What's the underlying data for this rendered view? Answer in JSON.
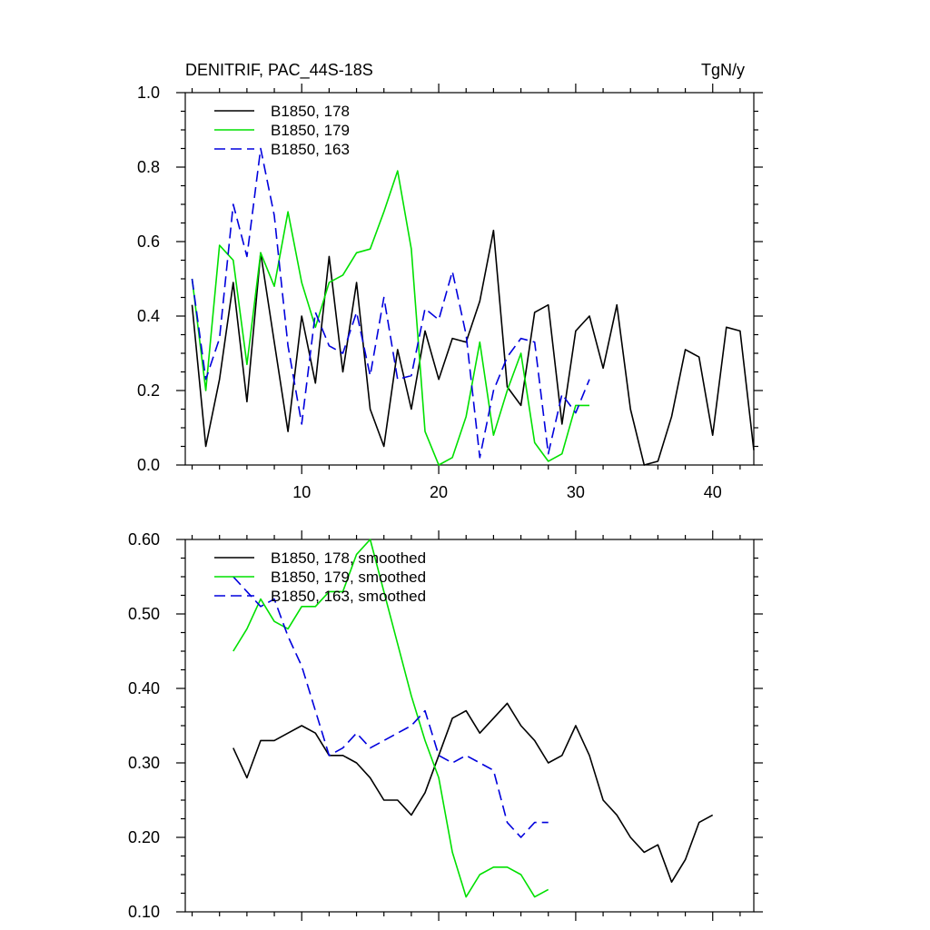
{
  "figure": {
    "title_left": "DENITRIF, PAC_44S-18S",
    "title_right": "TgN/y"
  },
  "colors": {
    "run178": "#000000",
    "run179": "#00e000",
    "run163": "#0000dd"
  },
  "chart_data": [
    {
      "type": "line",
      "title": "DENITRIF, PAC_44S-18S",
      "units": "TgN/y",
      "xlim": [
        1.5,
        43
      ],
      "ylim": [
        0,
        1
      ],
      "xticks": [
        10,
        20,
        30,
        40
      ],
      "xtick_labels": [
        "10",
        "20",
        "30",
        "40"
      ],
      "yticks": [
        0,
        0.2,
        0.4,
        0.6,
        0.8,
        1
      ],
      "ytick_labels": [
        "0.0",
        "0.2",
        "0.4",
        "0.6",
        "0.8",
        "1.0"
      ],
      "legend_position": "top-left",
      "series": [
        {
          "name": "B1850, 178",
          "color": "#000000",
          "dash": "solid",
          "x": [
            2,
            3,
            4,
            5,
            6,
            7,
            8,
            9,
            10,
            11,
            12,
            13,
            14,
            15,
            16,
            17,
            18,
            19,
            20,
            21,
            22,
            23,
            24,
            25,
            26,
            27,
            28,
            29,
            30,
            31,
            32,
            33,
            34,
            35,
            36,
            37,
            38,
            39,
            40,
            41,
            42,
            43
          ],
          "y": [
            0.43,
            0.05,
            0.23,
            0.49,
            0.17,
            0.57,
            0.33,
            0.09,
            0.4,
            0.22,
            0.56,
            0.25,
            0.49,
            0.15,
            0.05,
            0.31,
            0.15,
            0.36,
            0.23,
            0.34,
            0.33,
            0.44,
            0.63,
            0.21,
            0.16,
            0.41,
            0.43,
            0.11,
            0.36,
            0.4,
            0.26,
            0.43,
            0.15,
            0.0,
            0.01,
            0.13,
            0.31,
            0.29,
            0.08,
            0.37,
            0.36,
            0.04
          ]
        },
        {
          "name": "B1850, 179",
          "color": "#00e000",
          "dash": "solid",
          "x": [
            2,
            3,
            4,
            5,
            6,
            7,
            8,
            9,
            10,
            11,
            12,
            13,
            14,
            15,
            16,
            17,
            18,
            19,
            20,
            21,
            22,
            23,
            24,
            25,
            26,
            27,
            28,
            29,
            30,
            31
          ],
          "y": [
            0.5,
            0.2,
            0.59,
            0.55,
            0.27,
            0.57,
            0.48,
            0.68,
            0.49,
            0.37,
            0.49,
            0.51,
            0.57,
            0.58,
            0.68,
            0.79,
            0.58,
            0.09,
            0.0,
            0.02,
            0.13,
            0.33,
            0.08,
            0.2,
            0.3,
            0.06,
            0.01,
            0.03,
            0.16,
            0.16
          ]
        },
        {
          "name": "B1850, 163",
          "color": "#0000dd",
          "dash": "dashed",
          "x": [
            2,
            3,
            4,
            5,
            6,
            7,
            8,
            9,
            10,
            11,
            12,
            13,
            14,
            15,
            16,
            17,
            18,
            19,
            20,
            21,
            22,
            23,
            24,
            25,
            26,
            27,
            28,
            29,
            30,
            31
          ],
          "y": [
            0.5,
            0.23,
            0.34,
            0.7,
            0.56,
            0.85,
            0.67,
            0.32,
            0.11,
            0.41,
            0.32,
            0.3,
            0.41,
            0.24,
            0.45,
            0.23,
            0.24,
            0.42,
            0.39,
            0.52,
            0.35,
            0.02,
            0.2,
            0.29,
            0.34,
            0.33,
            0.03,
            0.19,
            0.14,
            0.23
          ]
        }
      ]
    },
    {
      "type": "line",
      "xlim": [
        1.5,
        43
      ],
      "ylim": [
        0.1,
        0.6
      ],
      "xticks": [
        10,
        20,
        30,
        40
      ],
      "xtick_labels": [
        "",
        "",
        "",
        ""
      ],
      "yticks": [
        0.1,
        0.2,
        0.3,
        0.4,
        0.5,
        0.6
      ],
      "ytick_labels": [
        "0.10",
        "0.20",
        "0.30",
        "0.40",
        "0.50",
        "0.60"
      ],
      "legend_position": "top-left",
      "series": [
        {
          "name": "B1850, 178, smoothed",
          "color": "#000000",
          "dash": "solid",
          "x": [
            5,
            6,
            7,
            8,
            9,
            10,
            11,
            12,
            13,
            14,
            15,
            16,
            17,
            18,
            19,
            20,
            21,
            22,
            23,
            24,
            25,
            26,
            27,
            28,
            29,
            30,
            31,
            32,
            33,
            34,
            35,
            36,
            37,
            38,
            39,
            40
          ],
          "y": [
            0.32,
            0.28,
            0.33,
            0.33,
            0.34,
            0.35,
            0.34,
            0.31,
            0.31,
            0.3,
            0.28,
            0.25,
            0.25,
            0.23,
            0.26,
            0.31,
            0.36,
            0.37,
            0.34,
            0.36,
            0.38,
            0.35,
            0.33,
            0.3,
            0.31,
            0.35,
            0.31,
            0.25,
            0.23,
            0.2,
            0.18,
            0.19,
            0.14,
            0.17,
            0.22,
            0.23
          ]
        },
        {
          "name": "B1850, 179, smoothed",
          "color": "#00e000",
          "dash": "solid",
          "x": [
            5,
            6,
            7,
            8,
            9,
            10,
            11,
            12,
            13,
            14,
            15,
            16,
            17,
            18,
            19,
            20,
            21,
            22,
            23,
            24,
            25,
            26,
            27,
            28
          ],
          "y": [
            0.45,
            0.48,
            0.52,
            0.49,
            0.48,
            0.51,
            0.51,
            0.53,
            0.53,
            0.58,
            0.6,
            0.53,
            0.46,
            0.39,
            0.33,
            0.28,
            0.18,
            0.12,
            0.15,
            0.16,
            0.16,
            0.15,
            0.12,
            0.13
          ]
        },
        {
          "name": "B1850, 163, smoothed",
          "color": "#0000dd",
          "dash": "dashed",
          "x": [
            5,
            6,
            7,
            8,
            9,
            10,
            11,
            12,
            13,
            14,
            15,
            16,
            17,
            18,
            19,
            20,
            21,
            22,
            23,
            24,
            25,
            26,
            27,
            28
          ],
          "y": [
            0.55,
            0.53,
            0.51,
            0.52,
            0.47,
            0.43,
            0.37,
            0.31,
            0.32,
            0.34,
            0.32,
            0.33,
            0.34,
            0.35,
            0.37,
            0.31,
            0.3,
            0.31,
            0.3,
            0.29,
            0.22,
            0.2,
            0.22,
            0.22
          ]
        }
      ]
    }
  ]
}
